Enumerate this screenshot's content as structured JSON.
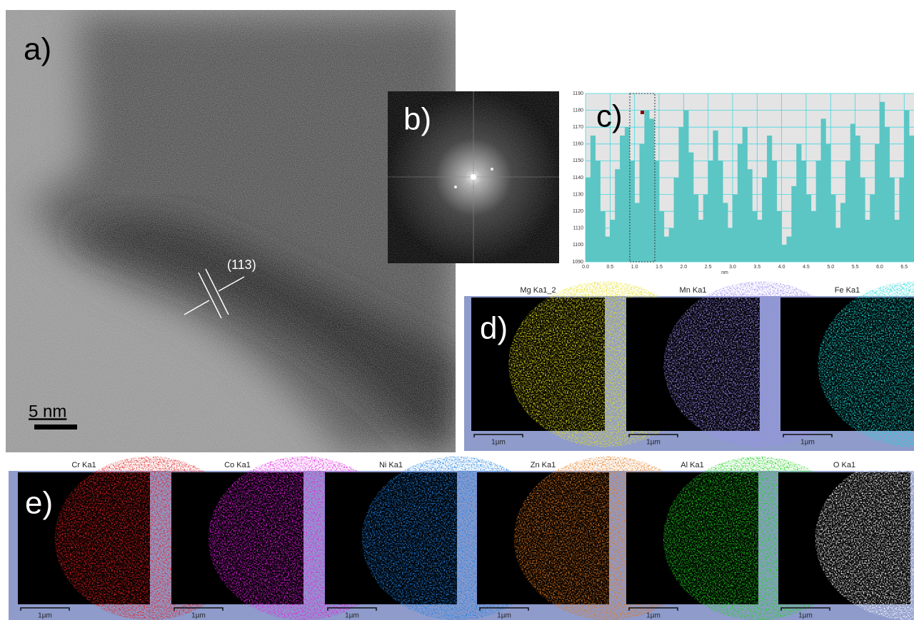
{
  "panels": {
    "a": {
      "label": "a)",
      "annotation": "(113)",
      "scale_bar": "5 nm"
    },
    "b": {
      "label": "b)"
    },
    "c": {
      "label": "c)"
    },
    "d": {
      "label": "d)",
      "maps": [
        {
          "title": "Mg Ka1_2",
          "scale_bar": "1µm",
          "color": "#e6e01e"
        },
        {
          "title": "Mn Ka1",
          "scale_bar": "1µm",
          "color": "#9a8cf0"
        },
        {
          "title": "Fe Ka1",
          "scale_bar": "1µm",
          "color": "#20d8d8"
        }
      ]
    },
    "e": {
      "label": "e)",
      "maps": [
        {
          "title": "Cr Ka1",
          "scale_bar": "1µm",
          "color": "#e02020"
        },
        {
          "title": "Co Ka1",
          "scale_bar": "1µm",
          "color": "#e020e0"
        },
        {
          "title": "Ni Ka1",
          "scale_bar": "1µm",
          "color": "#2080e0"
        },
        {
          "title": "Zn Ka1",
          "scale_bar": "1µm",
          "color": "#e07820"
        },
        {
          "title": "Al Ka1",
          "scale_bar": "1µm",
          "color": "#20d020"
        },
        {
          "title": "O Ka1",
          "scale_bar": "1µm",
          "color": "#ffffff"
        }
      ]
    }
  },
  "chart_data": {
    "type": "histogram",
    "color": "#5cc6c4",
    "grid": true,
    "xlabel": "nm",
    "bins": [
      0,
      0.1,
      0.2,
      0.3,
      0.4,
      0.5,
      0.6,
      0.7,
      0.8,
      0.9,
      1,
      1.1,
      1.2,
      1.3,
      1.4,
      1.5,
      1.6,
      1.7,
      1.8,
      1.9,
      2,
      2.1,
      2.2,
      2.3,
      2.4,
      2.5,
      2.6,
      2.7,
      2.8,
      2.9,
      3,
      3.1,
      3.2,
      3.3,
      3.4,
      3.5,
      3.6,
      3.7,
      3.8,
      3.9,
      4,
      4.1,
      4.2,
      4.3,
      4.4,
      4.5,
      4.6,
      4.7,
      4.8,
      4.9,
      5,
      5.1,
      5.2,
      5.3,
      5.4,
      5.5,
      5.6,
      5.7,
      5.8,
      5.9,
      6,
      6.1,
      6.2,
      6.3,
      6.4,
      6.5,
      6.6,
      6.7
    ],
    "values": [
      1140,
      1165,
      1150,
      1120,
      1105,
      1115,
      1145,
      1165,
      1170,
      1150,
      1125,
      1160,
      1180,
      1175,
      1150,
      1120,
      1105,
      1110,
      1140,
      1170,
      1180,
      1155,
      1130,
      1115,
      1130,
      1150,
      1168,
      1150,
      1125,
      1110,
      1130,
      1160,
      1170,
      1145,
      1120,
      1115,
      1140,
      1165,
      1150,
      1120,
      1100,
      1105,
      1135,
      1160,
      1150,
      1130,
      1120,
      1150,
      1175,
      1160,
      1130,
      1110,
      1125,
      1150,
      1172,
      1165,
      1140,
      1115,
      1130,
      1160,
      1185,
      1170,
      1140,
      1115,
      1140,
      1180,
      1165
    ],
    "xlim": [
      0,
      6.7
    ],
    "ylim": [
      1090,
      1190
    ],
    "xticks": [
      {
        "value": 0,
        "label": "0.0"
      },
      0.5,
      {
        "value": 1,
        "label": "1.0"
      },
      1.5,
      {
        "value": 2,
        "label": "2.0"
      },
      2.5,
      {
        "value": 3,
        "label": "3.0"
      },
      3.5,
      {
        "value": 4,
        "label": "4.0"
      },
      4.5,
      {
        "value": 5,
        "label": "5.0"
      },
      5.5,
      {
        "value": 6,
        "label": "6.0"
      },
      6.5
    ],
    "yticks": [
      1090,
      1100,
      1110,
      1120,
      1130,
      1140,
      1150,
      1160,
      1170,
      1180,
      1190
    ]
  }
}
